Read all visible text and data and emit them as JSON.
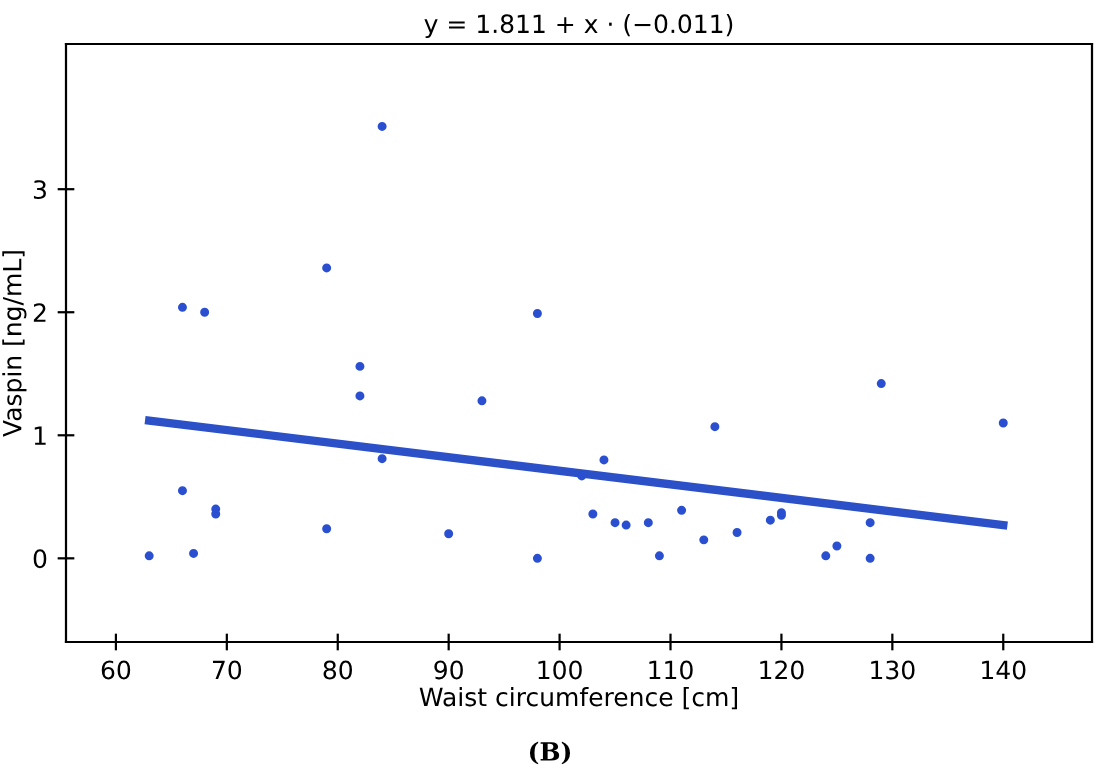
{
  "chart_data": {
    "type": "scatter",
    "title": "y = 1.811 + x · (−0.011)",
    "xlabel": "Waist circumference [cm]",
    "ylabel": "Vaspin [ng/mL]",
    "annotations": [
      "(B)"
    ],
    "xlim": [
      55.5,
      148
    ],
    "ylim": [
      -0.68,
      4.18
    ],
    "xticks": [
      60,
      70,
      80,
      90,
      100,
      110,
      120,
      130,
      140
    ],
    "yticks": [
      0,
      1,
      2,
      3
    ],
    "grid": false,
    "legend": false,
    "series": [
      {
        "marker": "circle",
        "color": "#2a4fd0",
        "x": [
          63,
          66,
          66,
          67,
          68,
          69,
          69,
          79,
          79,
          82,
          82,
          84,
          84,
          90,
          93,
          98,
          98,
          102,
          103,
          104,
          105,
          106,
          108,
          109,
          111,
          113,
          114,
          116,
          119,
          120,
          120,
          124,
          125,
          128,
          128,
          129,
          140
        ],
        "values": [
          0.02,
          2.04,
          0.55,
          0.04,
          2.0,
          0.4,
          0.36,
          2.36,
          0.24,
          1.56,
          1.32,
          3.51,
          0.81,
          0.2,
          1.28,
          1.99,
          0.0,
          0.67,
          0.36,
          0.8,
          0.29,
          0.27,
          0.29,
          0.02,
          0.39,
          0.15,
          1.07,
          0.21,
          0.31,
          0.37,
          0.35,
          0.02,
          0.1,
          0.29,
          0.0,
          1.42,
          1.1
        ]
      },
      {
        "type": "line",
        "color": "#2b50c8",
        "x": [
          63,
          140
        ],
        "values": [
          1.12,
          0.27
        ]
      }
    ]
  }
}
